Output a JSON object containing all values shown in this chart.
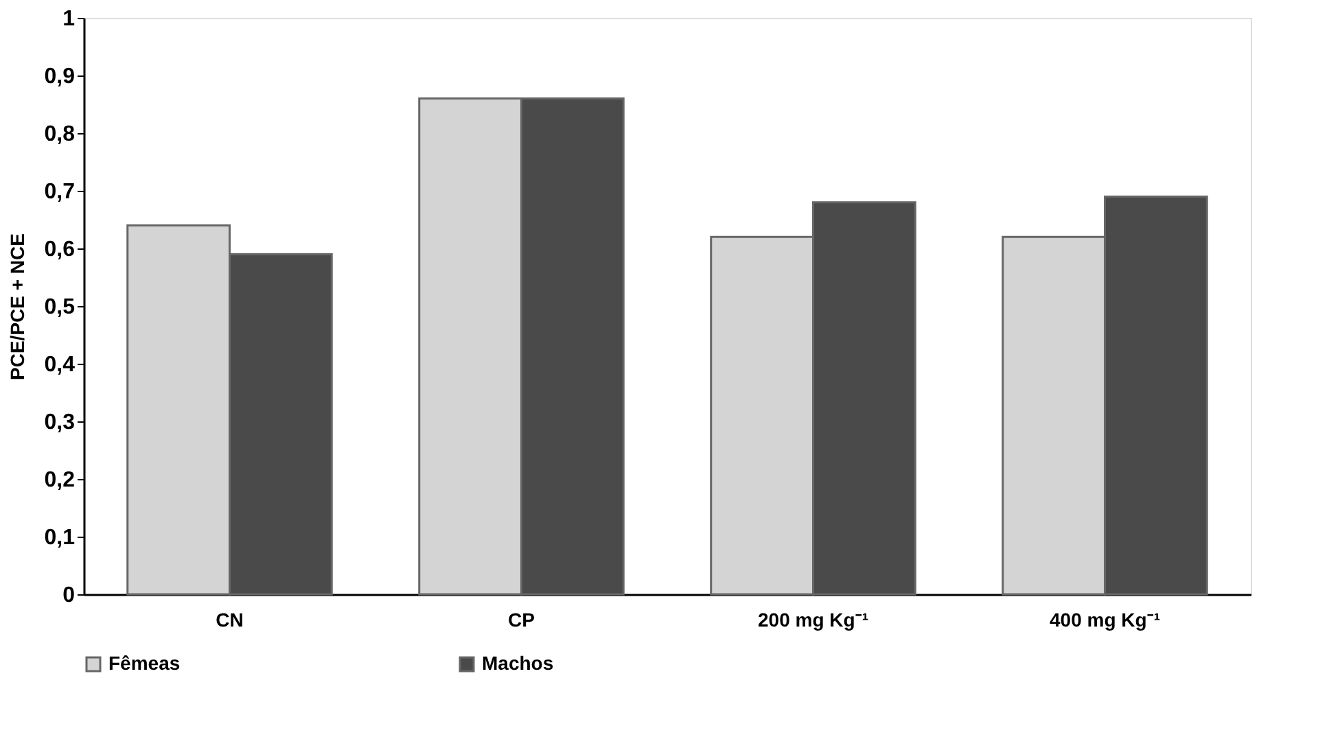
{
  "chart_data": {
    "type": "bar",
    "ylabel": "PCE/PCE + NCE",
    "categories": [
      "CN",
      "CP",
      "200 mg Kg⁻¹",
      "400 mg Kg⁻¹"
    ],
    "series": [
      {
        "name": "Fêmeas",
        "color": "#d4d4d4",
        "values": [
          0.64,
          0.86,
          0.62,
          0.62
        ]
      },
      {
        "name": "Machos",
        "color": "#4a4a4a",
        "values": [
          0.59,
          0.86,
          0.68,
          0.69
        ]
      }
    ],
    "ylim": [
      0,
      1
    ],
    "yticks": [
      0,
      {
        "value": 0.1,
        "label": "0,1"
      },
      {
        "value": 0.2,
        "label": "0,2"
      },
      {
        "value": 0.3,
        "label": "0,3"
      },
      {
        "value": 0.4,
        "label": "0,4"
      },
      {
        "value": 0.5,
        "label": "0,5"
      },
      {
        "value": 0.6,
        "label": "0,6"
      },
      {
        "value": 0.7,
        "label": "0,7"
      },
      {
        "value": 0.8,
        "label": "0,8"
      },
      {
        "value": 0.9,
        "label": "0,9"
      },
      1
    ],
    "grid": false,
    "legend": "bottom"
  }
}
